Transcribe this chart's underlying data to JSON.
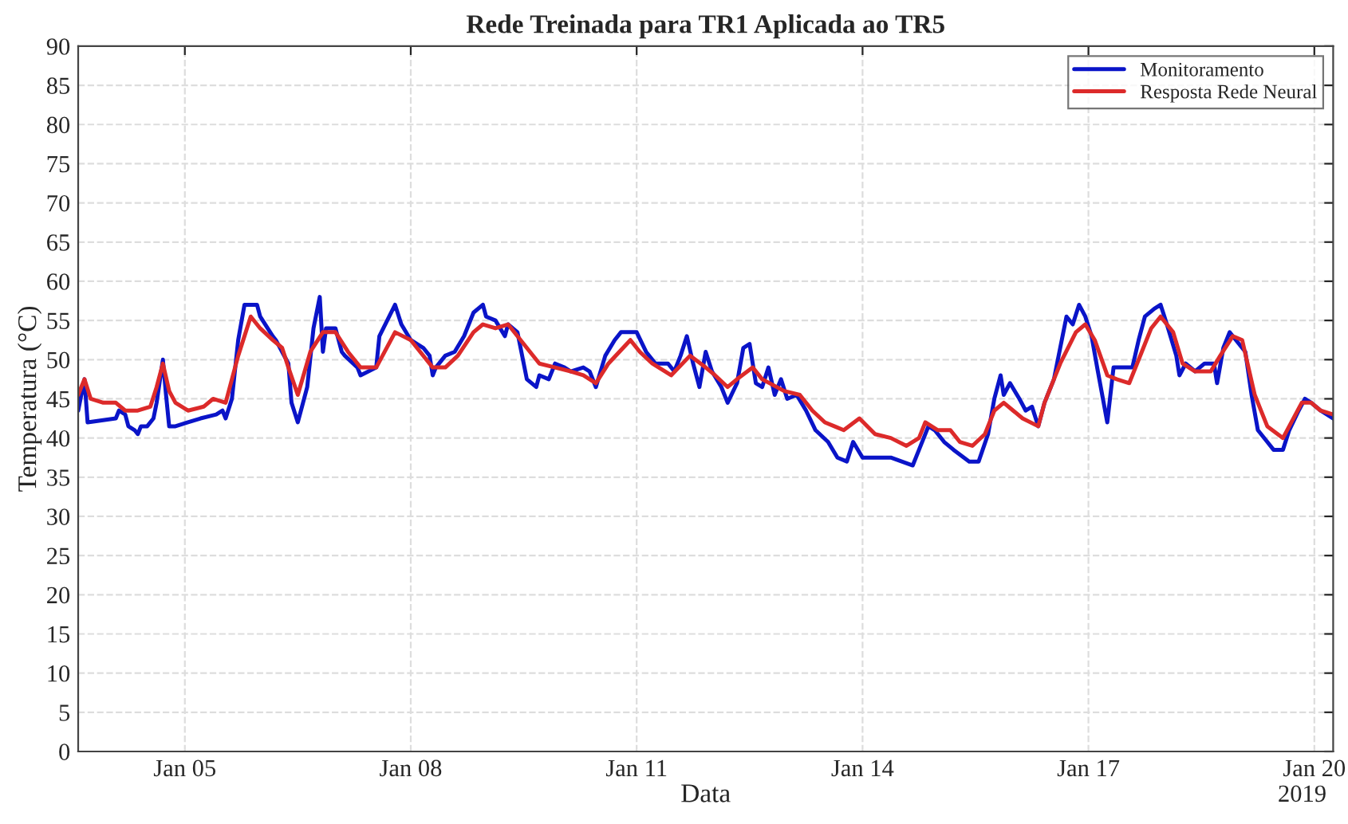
{
  "chart_data": {
    "type": "line",
    "title": "Rede Treinada para TR1 Aplicada ao TR5",
    "xlabel": "Data",
    "ylabel": "Temperatura (°C)",
    "annotations": [
      "2019"
    ],
    "xlim": [
      "2019-01-03T14:00",
      "2019-01-20T06:00"
    ],
    "xticks": [
      {
        "value": "2019-01-05",
        "label": "Jan 05"
      },
      {
        "value": "2019-01-08",
        "label": "Jan 08"
      },
      {
        "value": "2019-01-11",
        "label": "Jan 11"
      },
      {
        "value": "2019-01-14",
        "label": "Jan 14"
      },
      {
        "value": "2019-01-17",
        "label": "Jan 17"
      },
      {
        "value": "2019-01-20",
        "label": "Jan 20"
      }
    ],
    "ylim": [
      0,
      90
    ],
    "yticks": [
      0,
      5,
      10,
      15,
      20,
      25,
      30,
      35,
      40,
      45,
      50,
      55,
      60,
      65,
      70,
      75,
      80,
      85,
      90
    ],
    "grid": true,
    "legend": "top right",
    "line_style": "solid",
    "series": [
      {
        "name": "Monitoramento",
        "color": "#0a14c8",
        "x": [
          "2019-01-03T14:00",
          "2019-01-03T16:00",
          "2019-01-03T17:00",
          "2019-01-04T02:00",
          "2019-01-04T03:00",
          "2019-01-04T05:00",
          "2019-01-04T06:00",
          "2019-01-04T08:00",
          "2019-01-04T09:00",
          "2019-01-04T10:00",
          "2019-01-04T12:00",
          "2019-01-04T14:00",
          "2019-01-04T15:00",
          "2019-01-04T17:00",
          "2019-01-04T18:00",
          "2019-01-04T19:00",
          "2019-01-04T21:00",
          "2019-01-05T01:00",
          "2019-01-05T05:00",
          "2019-01-05T10:00",
          "2019-01-05T12:00",
          "2019-01-05T13:00",
          "2019-01-05T15:00",
          "2019-01-05T17:00",
          "2019-01-05T19:00",
          "2019-01-05T23:00",
          "2019-01-06T00:00",
          "2019-01-06T04:00",
          "2019-01-06T05:00",
          "2019-01-06T07:00",
          "2019-01-06T09:00",
          "2019-01-06T10:00",
          "2019-01-06T12:00",
          "2019-01-06T15:00",
          "2019-01-06T17:00",
          "2019-01-06T19:00",
          "2019-01-06T20:00",
          "2019-01-06T21:00",
          "2019-01-07T00:00",
          "2019-01-07T02:00",
          "2019-01-07T03:00",
          "2019-01-07T07:00",
          "2019-01-07T08:00",
          "2019-01-07T13:00",
          "2019-01-07T14:00",
          "2019-01-07T19:00",
          "2019-01-07T21:00",
          "2019-01-08T00:00",
          "2019-01-08T04:00",
          "2019-01-08T06:00",
          "2019-01-08T07:00",
          "2019-01-08T08:00",
          "2019-01-08T11:00",
          "2019-01-08T14:00",
          "2019-01-08T17:00",
          "2019-01-08T20:00",
          "2019-01-08T23:00",
          "2019-01-09T00:00",
          "2019-01-09T03:00",
          "2019-01-09T06:00",
          "2019-01-09T07:00",
          "2019-01-09T10:00",
          "2019-01-09T13:00",
          "2019-01-09T16:00",
          "2019-01-09T17:00",
          "2019-01-09T20:00",
          "2019-01-09T22:00",
          "2019-01-10T01:00",
          "2019-01-10T03:00",
          "2019-01-10T07:00",
          "2019-01-10T09:00",
          "2019-01-10T11:00",
          "2019-01-10T14:00",
          "2019-01-10T17:00",
          "2019-01-10T19:00",
          "2019-01-11T00:00",
          "2019-01-11T03:00",
          "2019-01-11T06:00",
          "2019-01-11T10:00",
          "2019-01-11T12:00",
          "2019-01-11T14:00",
          "2019-01-11T16:00",
          "2019-01-11T18:00",
          "2019-01-11T20:00",
          "2019-01-11T22:00",
          "2019-01-12T00:00",
          "2019-01-12T03:00",
          "2019-01-12T05:00",
          "2019-01-12T08:00",
          "2019-01-12T10:00",
          "2019-01-12T12:00",
          "2019-01-12T14:00",
          "2019-01-12T16:00",
          "2019-01-12T18:00",
          "2019-01-12T20:00",
          "2019-01-12T22:00",
          "2019-01-13T00:00",
          "2019-01-13T03:00",
          "2019-01-13T06:00",
          "2019-01-13T09:00",
          "2019-01-13T13:00",
          "2019-01-13T16:00",
          "2019-01-13T19:00",
          "2019-01-13T21:00",
          "2019-01-14T00:00",
          "2019-01-14T03:00",
          "2019-01-14T07:00",
          "2019-01-14T09:00",
          "2019-01-14T16:00",
          "2019-01-14T18:00",
          "2019-01-14T21:00",
          "2019-01-14T23:00",
          "2019-01-15T02:00",
          "2019-01-15T05:00",
          "2019-01-15T10:00",
          "2019-01-15T13:00",
          "2019-01-15T16:00",
          "2019-01-15T18:00",
          "2019-01-15T20:00",
          "2019-01-15T21:00",
          "2019-01-15T23:00",
          "2019-01-16T02:00",
          "2019-01-16T04:00",
          "2019-01-16T06:00",
          "2019-01-16T08:00",
          "2019-01-16T10:00",
          "2019-01-16T13:00",
          "2019-01-16T15:00",
          "2019-01-16T17:00",
          "2019-01-16T19:00",
          "2019-01-16T21:00",
          "2019-01-16T23:00",
          "2019-01-17T01:00",
          "2019-01-17T03:00",
          "2019-01-17T06:00",
          "2019-01-17T08:00",
          "2019-01-17T12:00",
          "2019-01-17T14:00",
          "2019-01-17T16:00",
          "2019-01-17T18:00",
          "2019-01-17T21:00",
          "2019-01-17T23:00",
          "2019-01-18T01:00",
          "2019-01-18T04:00",
          "2019-01-18T05:00",
          "2019-01-18T07:00",
          "2019-01-18T10:00",
          "2019-01-18T13:00",
          "2019-01-18T16:00",
          "2019-01-18T17:00",
          "2019-01-18T19:00",
          "2019-01-18T21:00",
          "2019-01-18T23:00",
          "2019-01-19T02:00",
          "2019-01-19T04:00",
          "2019-01-19T06:00",
          "2019-01-19T09:00",
          "2019-01-19T11:00",
          "2019-01-19T14:00",
          "2019-01-19T16:00",
          "2019-01-19T19:00",
          "2019-01-19T21:00",
          "2019-01-19T23:00",
          "2019-01-20T02:00",
          "2019-01-20T06:00"
        ],
        "values": [
          43.5,
          47.5,
          42,
          42.5,
          43.5,
          43,
          41.5,
          41,
          40.5,
          41.5,
          41.5,
          42.5,
          44.5,
          50,
          45.5,
          41.5,
          41.5,
          42,
          42.5,
          43,
          43.5,
          42.5,
          45,
          52.5,
          57,
          57,
          55.5,
          53,
          52.5,
          51,
          49.5,
          44.5,
          42,
          46.5,
          54,
          58,
          51,
          54,
          54,
          51,
          50.5,
          49,
          48,
          49,
          53,
          57,
          54.5,
          52.5,
          51.5,
          50.5,
          48,
          49,
          50.5,
          51,
          53,
          56,
          57,
          55.5,
          55,
          53,
          54.5,
          53.5,
          47.5,
          46.5,
          48,
          47.5,
          49.5,
          49,
          48.5,
          49,
          48.5,
          46.5,
          50.5,
          52.5,
          53.5,
          53.5,
          51,
          49.5,
          49.5,
          48.5,
          50.5,
          53,
          49.5,
          46.5,
          51,
          48.5,
          46.5,
          44.5,
          47,
          51.5,
          52,
          47,
          46.5,
          49,
          45.5,
          47.5,
          45,
          45.5,
          43.5,
          41,
          39.5,
          37.5,
          37,
          39.5,
          37.5,
          37.5,
          37.5,
          37.5,
          36.5,
          38.5,
          41.5,
          41,
          39.5,
          38.5,
          37,
          37,
          40.5,
          45,
          48,
          45.5,
          47,
          45,
          43.5,
          44,
          41.5,
          44.5,
          47.5,
          51.5,
          55.5,
          54.5,
          57,
          55.5,
          53,
          48.5,
          42,
          49,
          49,
          49,
          52.5,
          55.5,
          56.5,
          57,
          54.5,
          50.5,
          48,
          49.5,
          48.5,
          49.5,
          49.5,
          47,
          51.5,
          53.5,
          52.5,
          51,
          45.5,
          41,
          39.5,
          38.5,
          38.5,
          41,
          43.5,
          45,
          44.5,
          43.5,
          42.5
        ]
      },
      {
        "name": "Resposta Rede Neural",
        "color": "#dc2a2a",
        "x": [
          "2019-01-03T14:00",
          "2019-01-03T16:00",
          "2019-01-03T18:00",
          "2019-01-03T22:00",
          "2019-01-04T02:00",
          "2019-01-04T05:00",
          "2019-01-04T09:00",
          "2019-01-04T13:00",
          "2019-01-04T15:00",
          "2019-01-04T17:00",
          "2019-01-04T19:00",
          "2019-01-04T21:00",
          "2019-01-05T01:00",
          "2019-01-05T06:00",
          "2019-01-05T09:00",
          "2019-01-05T13:00",
          "2019-01-05T17:00",
          "2019-01-05T21:00",
          "2019-01-06T00:00",
          "2019-01-06T04:00",
          "2019-01-06T07:00",
          "2019-01-06T09:00",
          "2019-01-06T12:00",
          "2019-01-06T16:00",
          "2019-01-06T20:00",
          "2019-01-07T00:00",
          "2019-01-07T04:00",
          "2019-01-07T08:00",
          "2019-01-07T13:00",
          "2019-01-07T19:00",
          "2019-01-08T00:00",
          "2019-01-08T07:00",
          "2019-01-08T11:00",
          "2019-01-08T15:00",
          "2019-01-08T20:00",
          "2019-01-08T23:00",
          "2019-01-09T03:00",
          "2019-01-09T07:00",
          "2019-01-09T10:00",
          "2019-01-09T14:00",
          "2019-01-09T17:00",
          "2019-01-09T22:00",
          "2019-01-10T03:00",
          "2019-01-10T07:00",
          "2019-01-10T11:00",
          "2019-01-10T15:00",
          "2019-01-10T22:00",
          "2019-01-11T01:00",
          "2019-01-11T05:00",
          "2019-01-11T11:00",
          "2019-01-11T17:00",
          "2019-01-11T22:00",
          "2019-01-12T01:00",
          "2019-01-12T05:00",
          "2019-01-12T08:00",
          "2019-01-12T13:00",
          "2019-01-12T16:00",
          "2019-01-12T23:00",
          "2019-01-13T04:00",
          "2019-01-13T08:00",
          "2019-01-13T12:00",
          "2019-01-13T15:00",
          "2019-01-13T18:00",
          "2019-01-13T23:00",
          "2019-01-14T04:00",
          "2019-01-14T09:00",
          "2019-01-14T14:00",
          "2019-01-14T18:00",
          "2019-01-14T20:00",
          "2019-01-15T00:00",
          "2019-01-15T04:00",
          "2019-01-15T07:00",
          "2019-01-15T11:00",
          "2019-01-15T15:00",
          "2019-01-15T18:00",
          "2019-01-15T21:00",
          "2019-01-16T00:00",
          "2019-01-16T03:00",
          "2019-01-16T08:00",
          "2019-01-16T10:00",
          "2019-01-16T15:00",
          "2019-01-16T20:00",
          "2019-01-16T23:00",
          "2019-01-17T02:00",
          "2019-01-17T06:00",
          "2019-01-17T09:00",
          "2019-01-17T13:00",
          "2019-01-17T17:00",
          "2019-01-17T20:00",
          "2019-01-17T23:00",
          "2019-01-18T03:00",
          "2019-01-18T06:00",
          "2019-01-18T10:00",
          "2019-01-18T15:00",
          "2019-01-18T18:00",
          "2019-01-18T22:00",
          "2019-01-19T01:00",
          "2019-01-19T05:00",
          "2019-01-19T09:00",
          "2019-01-19T14:00",
          "2019-01-19T16:00",
          "2019-01-19T20:00",
          "2019-01-19T23:00",
          "2019-01-20T02:00",
          "2019-01-20T06:00"
        ],
        "values": [
          45.5,
          47.5,
          45,
          44.5,
          44.5,
          43.5,
          43.5,
          44,
          46.5,
          49.5,
          46,
          44.5,
          43.5,
          44,
          45,
          44.5,
          50.5,
          55.5,
          54,
          52.5,
          51.5,
          49,
          45.5,
          51,
          53.5,
          53.5,
          51,
          49,
          49,
          53.5,
          52.5,
          49,
          49,
          50.5,
          53.5,
          54.5,
          54,
          54.5,
          53,
          51,
          49.5,
          49,
          48.5,
          48,
          47,
          49.5,
          52.5,
          51,
          49.5,
          48,
          50.5,
          49,
          48,
          46.5,
          47.5,
          49,
          47.5,
          46,
          45.5,
          43.5,
          42,
          41.5,
          41,
          42.5,
          40.5,
          40,
          39,
          40,
          42,
          41,
          41,
          39.5,
          39,
          40.5,
          43.5,
          44.5,
          43.5,
          42.5,
          41.5,
          44.5,
          49.5,
          53.5,
          54.5,
          52.5,
          48,
          47.5,
          47,
          51,
          54,
          55.5,
          53.5,
          49.5,
          48.5,
          48.5,
          50.5,
          53,
          52.5,
          45.5,
          41.5,
          40,
          41.5,
          44.5,
          44.5,
          43.5,
          43
        ]
      }
    ]
  }
}
